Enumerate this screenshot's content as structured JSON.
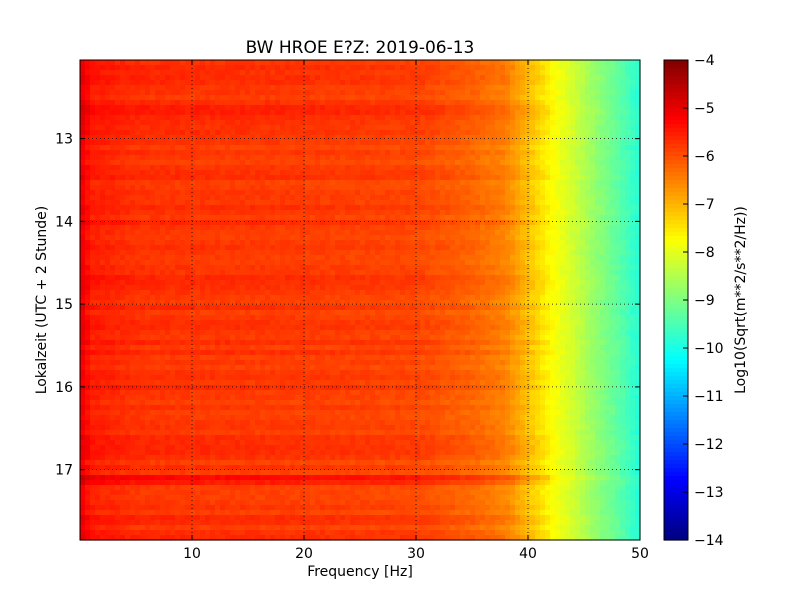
{
  "chart_data": {
    "type": "heatmap",
    "title": "BW HROE E?Z: 2019-06-13",
    "xlabel": "Frequency [Hz]",
    "ylabel": "Lokalzeit (UTC + 2 Stunde)",
    "xlim": [
      0,
      50
    ],
    "ylim": [
      17.85,
      12.05
    ],
    "x_ticks": [
      10,
      20,
      30,
      40,
      50
    ],
    "y_ticks": [
      13,
      14,
      15,
      16,
      17
    ],
    "grid": true,
    "colorbar": {
      "label": "Log10(Sqrt(m**2/s**2/Hz))",
      "min": -14,
      "max": -4,
      "ticks": [
        -4,
        -5,
        -6,
        -7,
        -8,
        -9,
        -10,
        -11,
        -12,
        -13,
        -14
      ],
      "colormap": "jet"
    },
    "spectrum_profile": {
      "frequency_hz": [
        0,
        1,
        5,
        10,
        20,
        30,
        35,
        38,
        40,
        42,
        44,
        46,
        48,
        50
      ],
      "log10_amplitude": [
        -5.0,
        -5.5,
        -5.7,
        -5.75,
        -5.8,
        -5.9,
        -6.2,
        -6.5,
        -7.1,
        -7.7,
        -8.2,
        -8.8,
        -9.3,
        -9.9
      ]
    },
    "bright_bands_hours": [
      12.65,
      17.1
    ]
  }
}
